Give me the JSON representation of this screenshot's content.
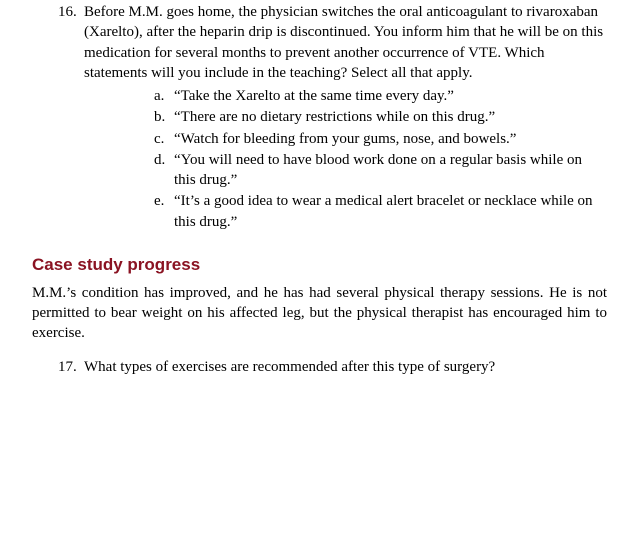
{
  "q16": {
    "number": "16.",
    "stem": "Before M.M. goes home, the physician switches the oral anticoagulant to rivaroxaban (Xarelto), after the heparin drip is discontinued. You inform him that he will be on this medication for several months to prevent another occurrence of VTE. Which statements will you include in the teaching? Select all that apply.",
    "options": [
      {
        "letter": "a.",
        "text": "“Take the Xarelto at the same time every day.”"
      },
      {
        "letter": "b.",
        "text": "“There are no dietary restrictions while on this drug.”"
      },
      {
        "letter": "c.",
        "text": "“Watch for bleeding from your gums, nose, and bowels.”"
      },
      {
        "letter": "d.",
        "text": "“You will need to have blood work done on a regular basis while on this drug.”"
      },
      {
        "letter": "e.",
        "text": "“It’s a good idea to wear a medical alert bracelet or necklace while on this drug.”"
      }
    ]
  },
  "section_heading": "Case study progress",
  "progress_paragraph": "M.M.’s condition has improved, and he has had several physical therapy sessions. He is not permitted to bear weight on his affected leg, but the physical therapist has encouraged him to exercise.",
  "q17": {
    "number": "17.",
    "stem": "What types of exercises are recommended after this type of surgery?"
  }
}
